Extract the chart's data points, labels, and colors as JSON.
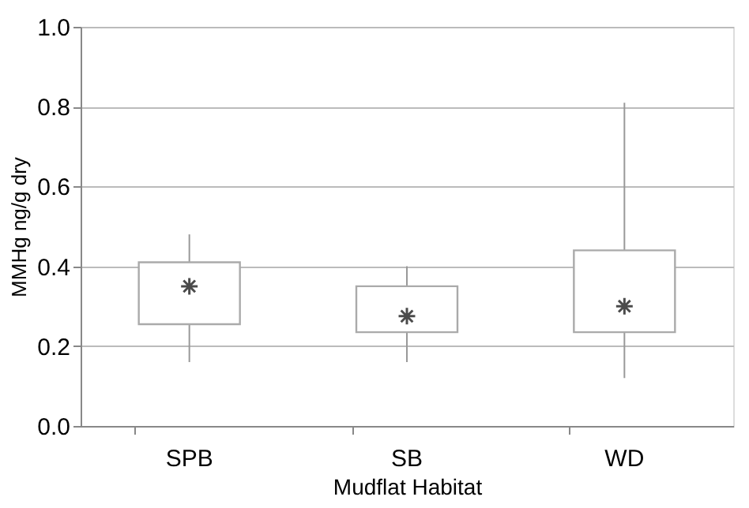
{
  "chart_data": {
    "type": "box",
    "xlabel": "Mudflat Habitat",
    "ylabel": "MMHg ng/g dry",
    "categories": [
      "SPB",
      "SB",
      "WD"
    ],
    "boxes": [
      {
        "low": 0.16,
        "q1": 0.255,
        "median": 0.35,
        "q3": 0.41,
        "high": 0.48
      },
      {
        "low": 0.16,
        "q1": 0.235,
        "median": 0.275,
        "q3": 0.35,
        "high": 0.4
      },
      {
        "low": 0.12,
        "q1": 0.235,
        "median": 0.3,
        "q3": 0.44,
        "high": 0.81
      }
    ],
    "color": "#ffffff",
    "ylim": [
      0,
      1.0
    ],
    "yticks": [
      {
        "value": 0,
        "label": "0.0"
      },
      {
        "value": 0.2,
        "label": "0.2"
      },
      {
        "value": 0.4,
        "label": "0.4"
      },
      {
        "value": 0.6,
        "label": "0.6"
      },
      {
        "value": 0.8,
        "label": "0.8"
      },
      {
        "value": 1.0,
        "label": "1.0"
      }
    ],
    "grid": "y",
    "marker": "star"
  }
}
